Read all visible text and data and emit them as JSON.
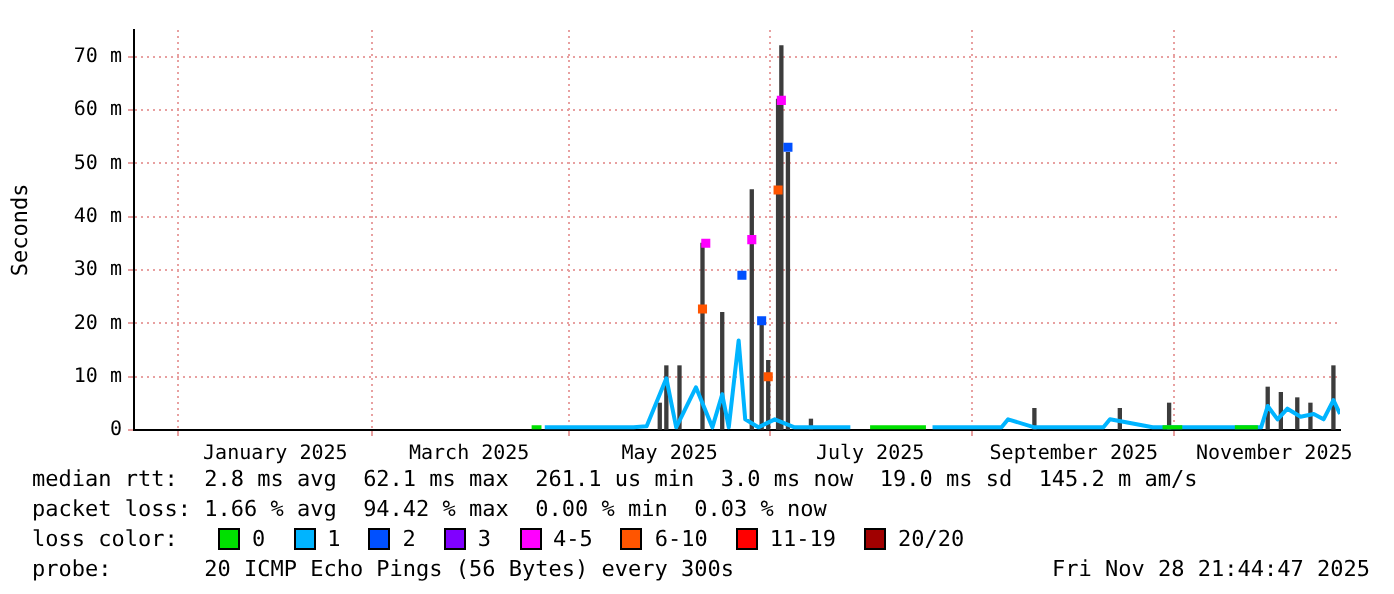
{
  "chart_data": {
    "type": "line",
    "ylabel": "Seconds",
    "legend_title": "loss color:",
    "legend": "bottom",
    "grid": true,
    "xlim": [
      "2024-11-19",
      "2025-11-21"
    ],
    "xticks": [
      {
        "value": "2025-01-01",
        "label": "January 2025"
      },
      {
        "value": "2025-03-01",
        "label": "March 2025"
      },
      {
        "value": "2025-05-01",
        "label": "May 2025"
      },
      {
        "value": "2025-07-01",
        "label": "July 2025"
      },
      {
        "value": "2025-09-01",
        "label": "September 2025"
      },
      {
        "value": "2025-11-01",
        "label": "November 2025"
      }
    ],
    "ylim": [
      0,
      75
    ],
    "yticks": [
      {
        "value": 0,
        "label": "0"
      },
      {
        "value": 10,
        "label": "10 m"
      },
      {
        "value": 20,
        "label": "20 m"
      },
      {
        "value": 30,
        "label": "30 m"
      },
      {
        "value": 40,
        "label": "40 m"
      },
      {
        "value": 50,
        "label": "50 m"
      },
      {
        "value": 60,
        "label": "60 m"
      },
      {
        "value": 70,
        "label": "70 m"
      }
    ],
    "series": [
      {
        "type": "bar",
        "color": "#3c3c3c",
        "x": [
          "2025-04-28",
          "2025-04-30",
          "2025-05-02",
          "2025-05-04",
          "2025-05-11",
          "2025-05-17",
          "2025-05-22",
          "2025-05-23",
          "2025-05-26",
          "2025-05-29",
          "2025-05-31",
          "2025-06-02",
          "2025-06-03",
          "2025-06-04",
          "2025-06-06",
          "2025-06-13",
          "2025-08-20",
          "2025-09-15",
          "2025-09-30",
          "2025-10-30",
          "2025-11-03",
          "2025-11-08",
          "2025-11-12",
          "2025-11-19"
        ],
        "values": [
          5,
          12,
          null,
          12,
          35,
          22,
          null,
          null,
          45,
          20.5,
          13,
          null,
          62,
          72,
          52,
          2,
          4,
          4,
          5,
          8,
          7,
          6,
          5,
          12
        ]
      },
      {
        "name": "0",
        "color": "#00e000",
        "x": [
          "2025-03-20",
          "2025-03-23",
          "2025-03-25",
          "2025-07-01",
          "2025-07-18",
          "2025-07-19",
          "2025-09-28",
          "2025-10-04",
          "2025-10-06",
          "2025-10-20",
          "2025-10-27"
        ],
        "values": [
          0.5,
          0.5,
          null,
          0.5,
          0.5,
          null,
          0.5,
          0.5,
          null,
          0.5,
          0.5
        ]
      },
      {
        "name": "1",
        "color": "#00b4ff",
        "x": [
          "2025-03-24",
          "2025-04-20",
          "2025-04-24",
          "2025-04-30",
          "2025-05-03",
          "2025-05-09",
          "2025-05-14",
          "2025-05-17",
          "2025-05-19",
          "2025-05-22",
          "2025-05-24",
          "2025-05-28",
          "2025-06-02",
          "2025-06-08",
          "2025-06-25",
          "2025-07-01",
          "2025-07-20",
          "2025-08-10",
          "2025-08-12",
          "2025-08-20",
          "2025-09-10",
          "2025-09-12",
          "2025-09-25",
          "2025-10-05",
          "2025-10-28",
          "2025-10-30",
          "2025-11-02",
          "2025-11-05",
          "2025-11-09",
          "2025-11-13",
          "2025-11-16",
          "2025-11-19",
          "2025-11-21"
        ],
        "values": [
          0.5,
          0.5,
          0.7,
          9.7,
          0.5,
          8,
          0.5,
          6.7,
          0.5,
          16.8,
          2,
          0.5,
          2,
          0.5,
          0.5,
          null,
          0.5,
          0.5,
          2,
          0.5,
          0.5,
          2,
          0.5,
          0.5,
          0.5,
          4.5,
          2,
          4,
          2.5,
          3,
          2,
          5.6,
          3
        ]
      },
      {
        "name": "2",
        "type": "scatter",
        "marker": "square",
        "color": "#0050ff",
        "x": [
          "2025-05-23",
          "2025-05-29",
          "2025-06-06"
        ],
        "values": [
          29,
          20.5,
          53
        ]
      },
      {
        "name": "3",
        "type": "scatter",
        "marker": "square",
        "color": "#8000ff"
      },
      {
        "name": "4-5",
        "type": "scatter",
        "marker": "square",
        "color": "#ff00ff",
        "x": [
          "2025-05-12",
          "2025-05-26",
          "2025-06-04"
        ],
        "values": [
          35,
          35.7,
          61.8
        ]
      },
      {
        "name": "6-10",
        "type": "scatter",
        "marker": "square",
        "color": "#ff5500",
        "x": [
          "2025-05-11",
          "2025-05-31",
          "2025-06-03"
        ],
        "values": [
          22.7,
          10,
          45
        ]
      },
      {
        "name": "11-19",
        "type": "scatter",
        "marker": "square",
        "color": "#ff0000"
      },
      {
        "name": "20/20",
        "type": "scatter",
        "marker": "square",
        "color": "#a00000"
      }
    ],
    "annotations": [
      "median rtt:  2.8 ms avg  62.1 ms max  261.1 us min  3.0 ms now  19.0 ms sd  145.2 m am/s",
      "packet loss: 1.66 % avg  94.42 % max  0.00 % min  0.03 % now",
      "probe:       20 ICMP Echo Pings (56 Bytes) every 300s",
      "Fri Nov 28 21:44:47 2025"
    ]
  }
}
